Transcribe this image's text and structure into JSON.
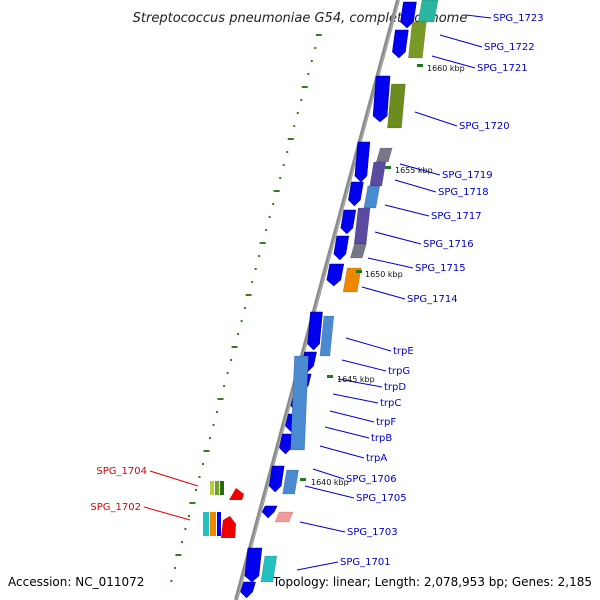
{
  "title": "Streptococcus pneumoniae G54, complete genome",
  "footer": {
    "accession": "Accession: NC_011072",
    "topology": "Topology: linear; Length: 2,078,953 bp; Genes: 2,185"
  },
  "colors": {
    "blue_label": "#0000cc",
    "red_label": "#dd0000",
    "backbone": "#888888",
    "tick": "#3a7d1e"
  },
  "kbp_markers": [
    "1660 kbp",
    "1655 kbp",
    "1650 kbp",
    "1645 kbp",
    "1640 kbp"
  ],
  "gene_labels": [
    {
      "text": "SPG_1723",
      "color": "blue"
    },
    {
      "text": "SPG_1722",
      "color": "blue"
    },
    {
      "text": "SPG_1721",
      "color": "blue"
    },
    {
      "text": "SPG_1720",
      "color": "blue"
    },
    {
      "text": "SPG_1719",
      "color": "blue"
    },
    {
      "text": "SPG_1718",
      "color": "blue"
    },
    {
      "text": "SPG_1717",
      "color": "blue"
    },
    {
      "text": "SPG_1716",
      "color": "blue"
    },
    {
      "text": "SPG_1715",
      "color": "blue"
    },
    {
      "text": "SPG_1714",
      "color": "blue"
    },
    {
      "text": "trpE",
      "color": "blue"
    },
    {
      "text": "trpG",
      "color": "blue"
    },
    {
      "text": "trpD",
      "color": "blue"
    },
    {
      "text": "trpC",
      "color": "blue"
    },
    {
      "text": "trpF",
      "color": "blue"
    },
    {
      "text": "trpB",
      "color": "blue"
    },
    {
      "text": "trpA",
      "color": "blue"
    },
    {
      "text": "SPG_1706",
      "color": "blue"
    },
    {
      "text": "SPG_1705",
      "color": "blue"
    },
    {
      "text": "SPG_1703",
      "color": "blue"
    },
    {
      "text": "SPG_1701",
      "color": "blue"
    },
    {
      "text": "SPG_1704",
      "color": "red"
    },
    {
      "text": "SPG_1702",
      "color": "red"
    }
  ]
}
